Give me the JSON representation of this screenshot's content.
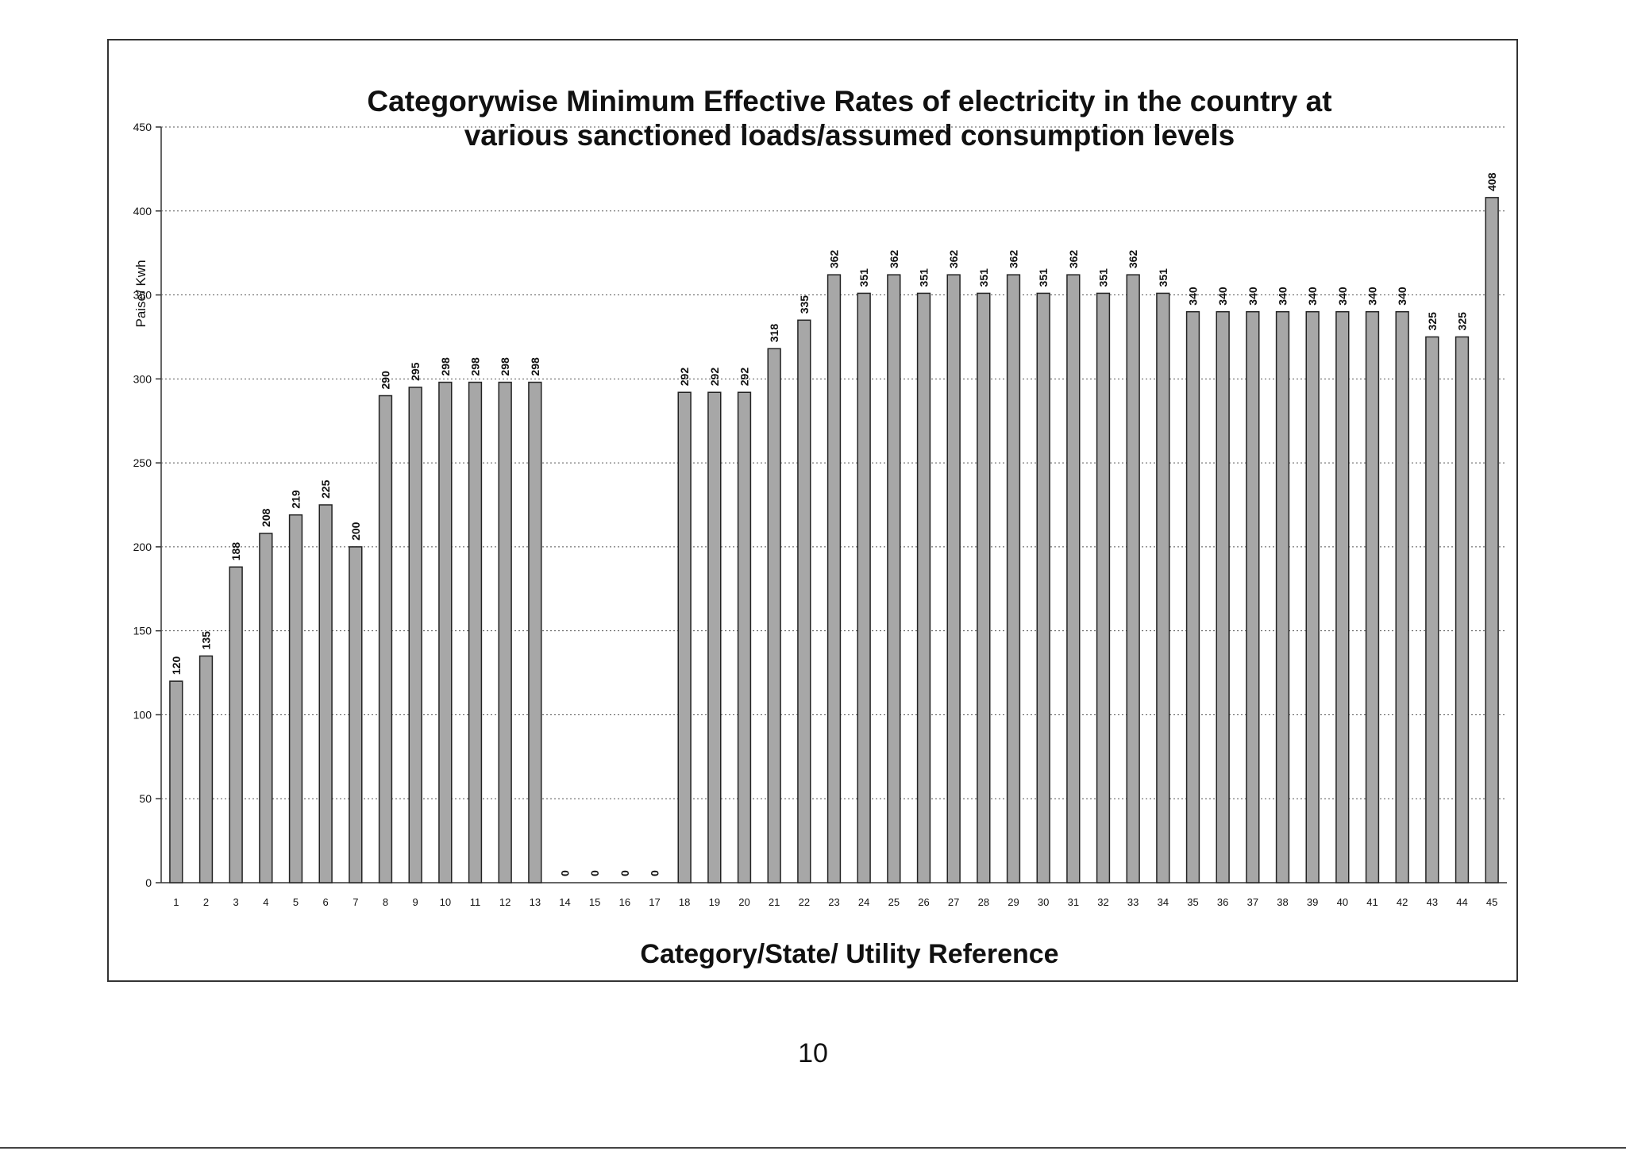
{
  "page": {
    "page_number": "10"
  },
  "colors": {
    "bar_fill": "#a7a7a7",
    "bar_stroke": "#222222",
    "grid": "#555555",
    "text": "#111111",
    "frame": "#333333"
  },
  "chart_data": {
    "type": "bar",
    "title_lines": [
      "Categorywise Minimum Effective Rates of electricity in the country at",
      "various sanctioned loads/assumed consumption levels"
    ],
    "xlabel": "Category/State/ Utility  Reference",
    "ylabel": "Paise/ Kwh",
    "ylim": [
      0,
      450
    ],
    "yticks": [
      0,
      50,
      100,
      150,
      200,
      250,
      300,
      350,
      400,
      450
    ],
    "grid": true,
    "categories": [
      "1",
      "2",
      "3",
      "4",
      "5",
      "6",
      "7",
      "8",
      "9",
      "10",
      "11",
      "12",
      "13",
      "14",
      "15",
      "16",
      "17",
      "18",
      "19",
      "20",
      "21",
      "22",
      "23",
      "24",
      "25",
      "26",
      "27",
      "28",
      "29",
      "30",
      "31",
      "32",
      "33",
      "34",
      "35",
      "36",
      "37",
      "38",
      "39",
      "40",
      "41",
      "42",
      "43",
      "44",
      "45"
    ],
    "values": [
      120,
      135,
      188,
      208,
      219,
      225,
      200,
      290,
      295,
      298,
      298,
      298,
      298,
      0,
      0,
      0,
      0,
      292,
      292,
      292,
      318,
      335,
      362,
      351,
      362,
      351,
      362,
      351,
      362,
      351,
      362,
      351,
      362,
      351,
      340,
      340,
      340,
      340,
      340,
      340,
      340,
      340,
      325,
      325,
      408
    ]
  }
}
